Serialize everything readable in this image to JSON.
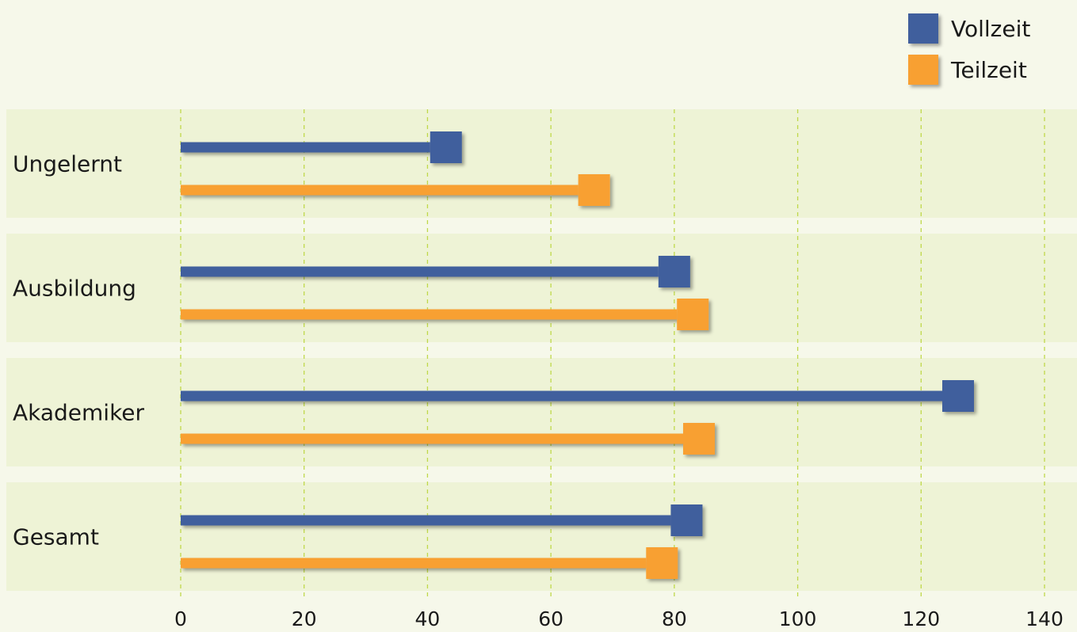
{
  "chart_data": {
    "type": "bar",
    "orientation": "horizontal",
    "categories": [
      "Ungelernt",
      "Ausbildung",
      "Akademiker",
      "Gesamt"
    ],
    "series": [
      {
        "name": "Vollzeit",
        "color": "#3f5e9d",
        "values": [
          43,
          80,
          126,
          82
        ]
      },
      {
        "name": "Teilzeit",
        "color": "#f8a030",
        "values": [
          67,
          83,
          84,
          78
        ]
      }
    ],
    "xlim": [
      0,
      140
    ],
    "xticks": [
      0,
      20,
      40,
      60,
      80,
      100,
      120,
      140
    ],
    "grid": "vertical dashed",
    "legend_position": "top-right",
    "panel_color": "#eef3d6",
    "grid_color": "#bfd84a"
  }
}
